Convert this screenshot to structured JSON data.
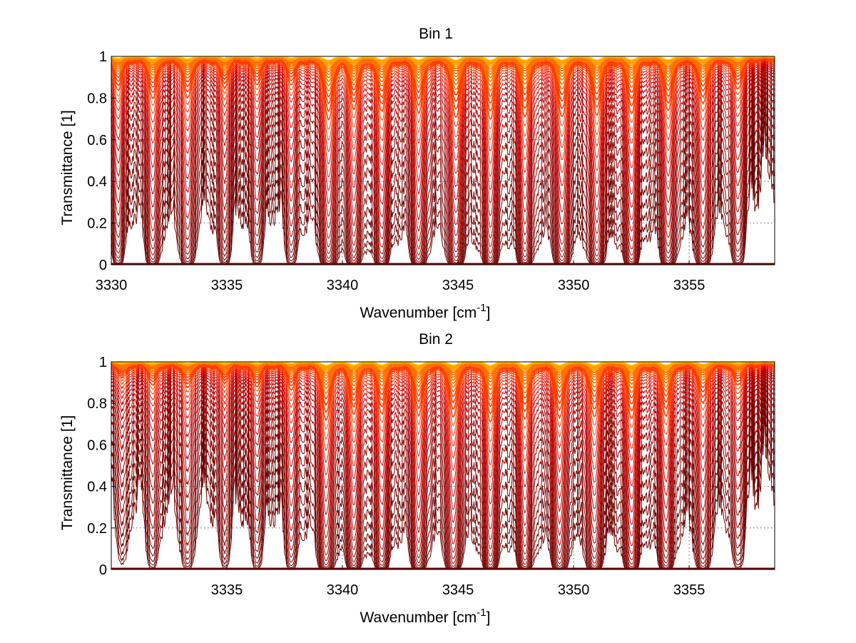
{
  "figure": {
    "colormap": [
      "#6e0000",
      "#8c0000",
      "#b00000",
      "#d00000",
      "#e81800",
      "#ff3c00",
      "#ff7000",
      "#ffa000",
      "#ffd000",
      "#ffff20",
      "#7fd4ff",
      "#00b4ff"
    ]
  },
  "chart_data": [
    {
      "type": "line",
      "title": "Bin 1",
      "xlabel": "Wavenumber [cm",
      "xlabel_sup": "-1",
      "xlabel_suffix": "]",
      "ylabel": "Transmittance [1]",
      "xlim": [
        3330,
        3358.7
      ],
      "ylim": [
        0,
        1
      ],
      "xticks": [
        3330,
        3335,
        3340,
        3345,
        3350,
        3355
      ],
      "yticks": [
        0,
        0.2,
        0.4,
        0.6,
        0.8,
        1
      ],
      "ytick_labels": [
        "0",
        "0.2",
        "0.4",
        "0.6",
        "0.8",
        "1"
      ],
      "grid": true,
      "series_count": 40,
      "absorption_lines": [
        {
          "center": 3330.3,
          "depth": 0.45
        },
        {
          "center": 3331.8,
          "depth": 0.6
        },
        {
          "center": 3333.3,
          "depth": 0.6
        },
        {
          "center": 3334.9,
          "depth": 0.4
        },
        {
          "center": 3336.3,
          "depth": 0.35
        },
        {
          "center": 3337.8,
          "depth": 0.35
        },
        {
          "center": 3339.4,
          "depth": 1.0
        },
        {
          "center": 3340.5,
          "depth": 0.75
        },
        {
          "center": 3341.7,
          "depth": 0.8
        },
        {
          "center": 3343.3,
          "depth": 0.85
        },
        {
          "center": 3344.9,
          "depth": 0.95
        },
        {
          "center": 3346.4,
          "depth": 0.95
        },
        {
          "center": 3347.9,
          "depth": 0.9
        },
        {
          "center": 3349.5,
          "depth": 0.95
        },
        {
          "center": 3351.0,
          "depth": 0.9
        },
        {
          "center": 3352.5,
          "depth": 0.85
        },
        {
          "center": 3354.1,
          "depth": 0.8
        },
        {
          "center": 3355.6,
          "depth": 0.7
        },
        {
          "center": 3357.1,
          "depth": 0.45
        }
      ]
    },
    {
      "type": "line",
      "title": "Bin 2",
      "xlabel": "Wavenumber [cm",
      "xlabel_sup": "-1",
      "xlabel_suffix": "]",
      "ylabel": "Transmittance [1]",
      "xlim": [
        3330,
        3358.7
      ],
      "ylim": [
        0,
        1
      ],
      "xticks": [
        3335,
        3340,
        3345,
        3350,
        3355
      ],
      "yticks": [
        0,
        0.2,
        0.4,
        0.6,
        0.8,
        1
      ],
      "ytick_labels": [
        "0",
        "0.2",
        "0.4",
        "0.6",
        "0.8",
        "1"
      ],
      "grid": true,
      "series_count": 40,
      "absorption_lines": [
        {
          "center": 3330.5,
          "depth": 0.2
        },
        {
          "center": 3331.8,
          "depth": 0.3
        },
        {
          "center": 3333.3,
          "depth": 0.35
        },
        {
          "center": 3334.9,
          "depth": 0.25
        },
        {
          "center": 3336.3,
          "depth": 0.3
        },
        {
          "center": 3337.8,
          "depth": 0.35
        },
        {
          "center": 3339.3,
          "depth": 0.9
        },
        {
          "center": 3340.5,
          "depth": 0.75
        },
        {
          "center": 3341.7,
          "depth": 0.75
        },
        {
          "center": 3343.3,
          "depth": 0.8
        },
        {
          "center": 3344.8,
          "depth": 0.85
        },
        {
          "center": 3346.4,
          "depth": 0.9
        },
        {
          "center": 3347.9,
          "depth": 0.85
        },
        {
          "center": 3349.4,
          "depth": 0.85
        },
        {
          "center": 3350.9,
          "depth": 0.85
        },
        {
          "center": 3352.5,
          "depth": 0.85
        },
        {
          "center": 3354.0,
          "depth": 0.8
        },
        {
          "center": 3355.6,
          "depth": 0.6
        },
        {
          "center": 3357.1,
          "depth": 0.3
        }
      ]
    }
  ]
}
